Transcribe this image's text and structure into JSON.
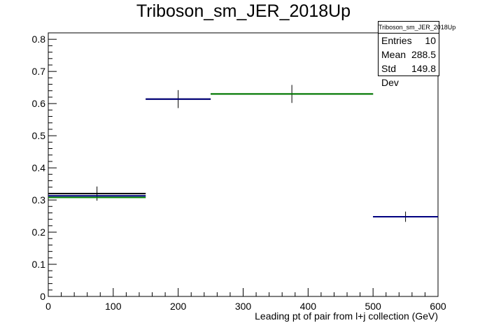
{
  "chart_data": {
    "type": "histogram",
    "title": "Triboson_sm_JER_2018Up",
    "xlabel": "Leading pt of pair from l+j collection (GeV)",
    "ylabel": "",
    "xlim": [
      0,
      600
    ],
    "ylim": [
      0,
      0.82
    ],
    "x_ticks": [
      "0",
      "100",
      "200",
      "300",
      "400",
      "500",
      "600"
    ],
    "y_ticks": [
      "0",
      "0.1",
      "0.2",
      "0.3",
      "0.4",
      "0.5",
      "0.6",
      "0.7",
      "0.8"
    ],
    "grid": false,
    "series": [
      {
        "color": "#000000",
        "bins": [
          {
            "x_low": 0,
            "x_high": 150,
            "y": 0.32,
            "err": 0.022
          },
          {
            "x_low": 150,
            "x_high": 250,
            "y": 0.614,
            "err": 0.028
          },
          {
            "x_low": 250,
            "x_high": 500,
            "y": 0.63,
            "err": 0.028
          },
          {
            "x_low": 500,
            "x_high": 600,
            "y": 0.248,
            "err": 0.016
          }
        ]
      },
      {
        "color": "#000080",
        "bins": [
          {
            "x_low": 0,
            "x_high": 150,
            "y": 0.313
          },
          {
            "x_low": 150,
            "x_high": 250,
            "y": 0.614
          },
          {
            "x_low": 500,
            "x_high": 600,
            "y": 0.248
          }
        ]
      },
      {
        "color": "#008000",
        "bins": [
          {
            "x_low": 0,
            "x_high": 150,
            "y": 0.308
          },
          {
            "x_low": 250,
            "x_high": 500,
            "y": 0.63
          }
        ]
      }
    ]
  },
  "stats": {
    "title": "Triboson_sm_JER_2018Up",
    "entries_label": "Entries",
    "entries_value": "10",
    "mean_label": "Mean",
    "mean_value": "288.5",
    "stddev_label": "Std Dev",
    "stddev_value": "149.8"
  }
}
